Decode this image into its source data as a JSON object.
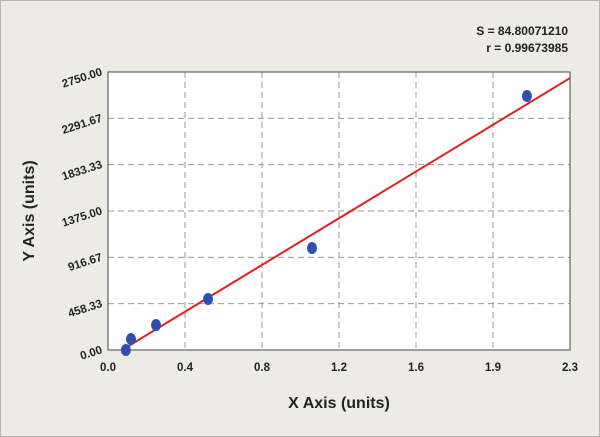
{
  "chart_data": {
    "type": "scatter",
    "annotations": [
      "S = 84.80071210",
      "r = 0.99673985"
    ],
    "x_label": "X Axis (units)",
    "y_label": "Y Axis (units)",
    "xlim": [
      0,
      2.328
    ],
    "ylim": [
      0,
      2750
    ],
    "xticks": [
      {
        "value": 0,
        "label": "0.0"
      },
      {
        "value": 0.388,
        "label": "0.4"
      },
      {
        "value": 0.776,
        "label": "0.8"
      },
      {
        "value": 1.164,
        "label": "1.2"
      },
      {
        "value": 1.552,
        "label": "1.6"
      },
      {
        "value": 1.94,
        "label": "1.9"
      },
      {
        "value": 2.328,
        "label": "2.3"
      }
    ],
    "yticks": [
      {
        "value": 0,
        "label": "0.00"
      },
      458.33,
      916.67,
      {
        "value": 1375,
        "label": "1375.00"
      },
      1833.33,
      2291.67,
      {
        "value": 2750,
        "label": "2750.00"
      }
    ],
    "grid": true,
    "series": [
      {
        "color": "#2f4fb0",
        "x": [
          0.09,
          0.116,
          0.242,
          0.504,
          1.028,
          2.111
        ],
        "values": [
          0,
          109,
          247,
          504,
          1009,
          2513
        ]
      }
    ],
    "fit_line": {
      "color": "#e02020",
      "x": [
        0.07,
        2.328
      ],
      "y": [
        0,
        2690
      ]
    }
  }
}
